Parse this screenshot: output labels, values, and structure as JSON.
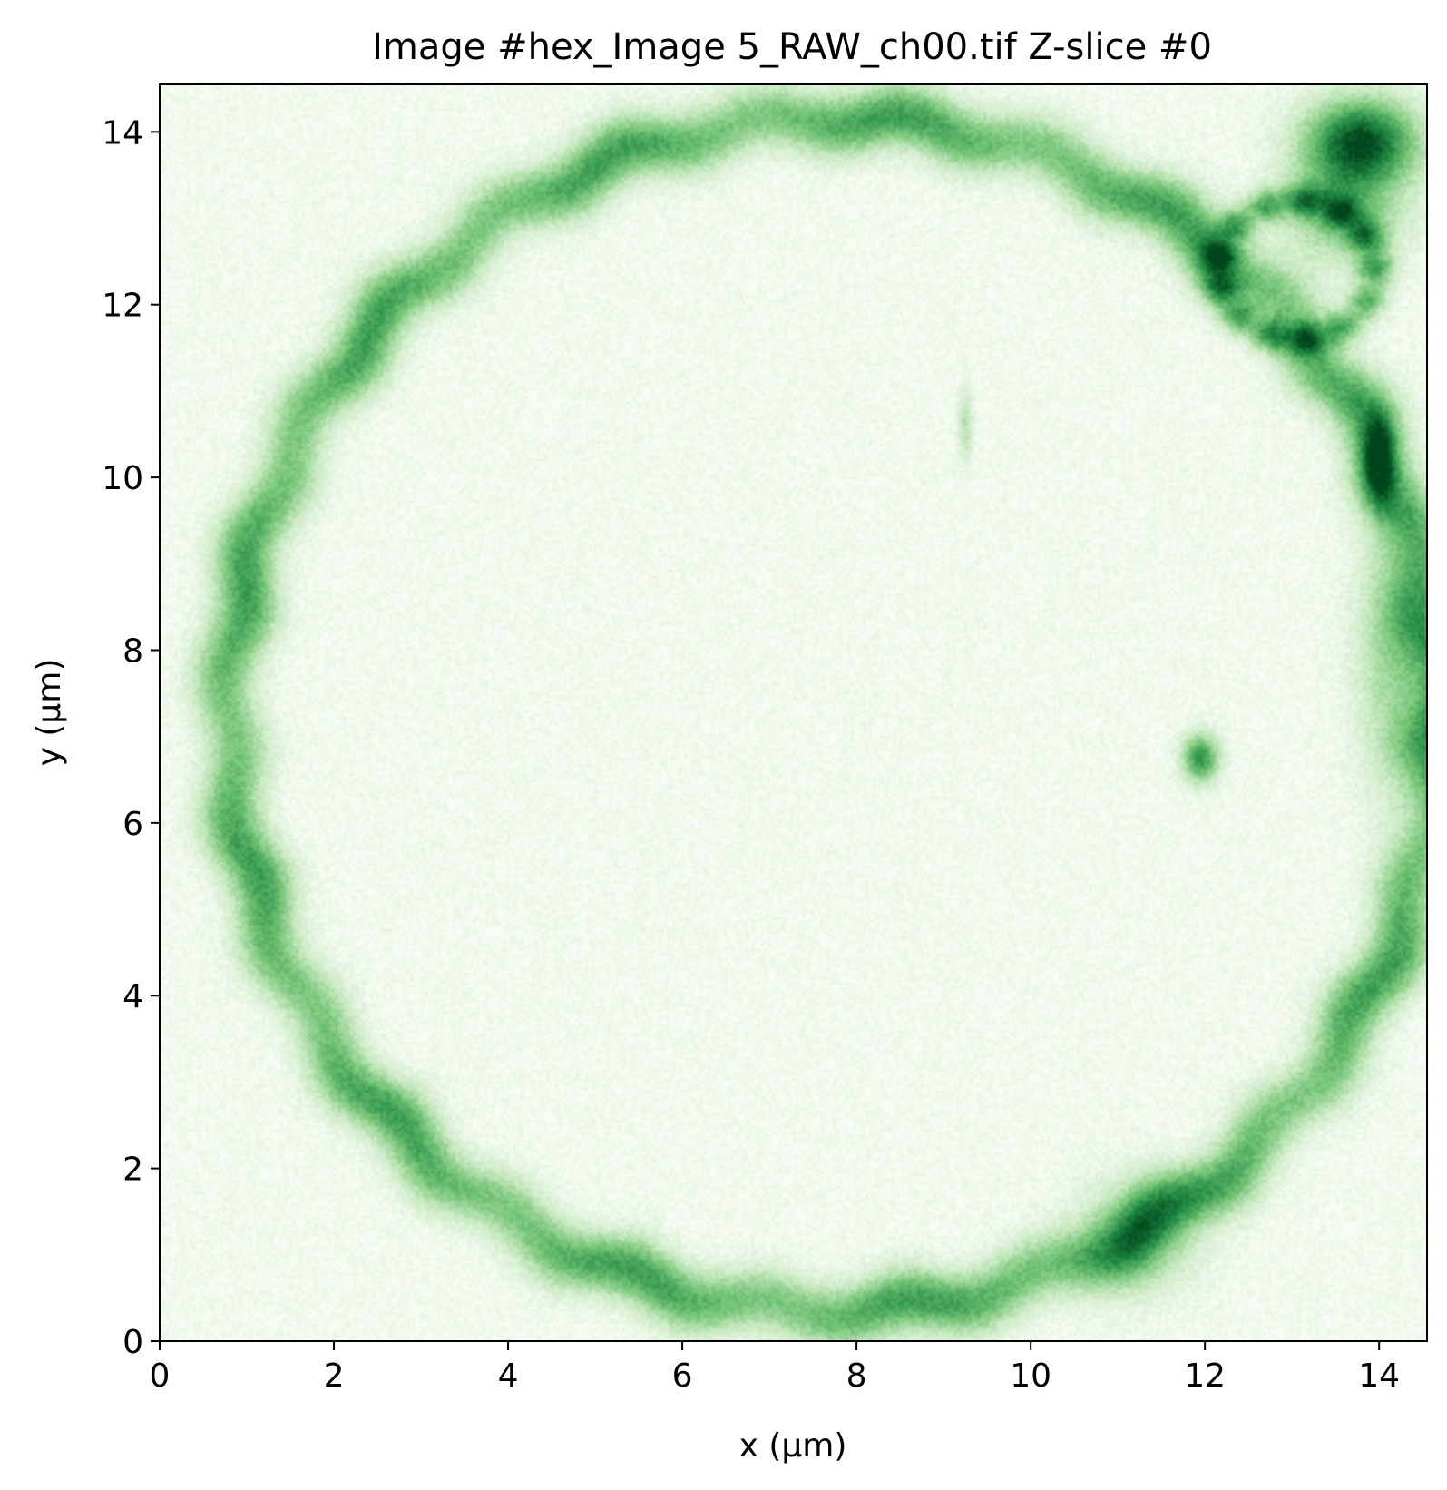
{
  "chart_data": {
    "type": "heatmap",
    "title": "Image #hex_Image 5_RAW_ch00.tif Z-slice #0",
    "xlabel": "x (μm)",
    "ylabel": "y (μm)",
    "xlim": [
      0,
      14.55
    ],
    "ylim": [
      0,
      14.55
    ],
    "x_ticks": [
      0,
      2,
      4,
      6,
      8,
      10,
      12,
      14
    ],
    "y_ticks": [
      0,
      2,
      4,
      6,
      8,
      10,
      12,
      14
    ],
    "x_tick_labels": [
      "0",
      "2",
      "4",
      "6",
      "8",
      "10",
      "12",
      "14"
    ],
    "y_tick_labels": [
      "0",
      "2",
      "4",
      "6",
      "8",
      "10",
      "12",
      "14"
    ],
    "colormap": "Greens",
    "color_low": "#f7fcf5",
    "color_high": "#00441b",
    "grid": false,
    "features": [
      {
        "kind": "ring",
        "cx": 7.75,
        "cy": 7.25,
        "rx": 6.95,
        "ry": 6.9,
        "width": 0.55,
        "intensity": 0.65
      },
      {
        "kind": "ring",
        "cx": 13.05,
        "cy": 12.4,
        "rx": 0.9,
        "ry": 0.8,
        "width": 0.3,
        "intensity": 0.55
      },
      {
        "kind": "spot",
        "x": 13.8,
        "y": 13.9,
        "sx": 0.45,
        "sy": 0.35,
        "intensity": 0.9
      },
      {
        "kind": "spot",
        "x": 13.6,
        "y": 13.1,
        "sx": 0.5,
        "sy": 0.45,
        "intensity": 0.45
      },
      {
        "kind": "spot",
        "x": 11.95,
        "y": 6.75,
        "sx": 0.15,
        "sy": 0.2,
        "intensity": 0.7
      },
      {
        "kind": "spot",
        "x": 14.0,
        "y": 10.2,
        "sx": 0.12,
        "sy": 0.35,
        "intensity": 0.6
      },
      {
        "kind": "spot",
        "x": 9.25,
        "y": 10.6,
        "sx": 0.06,
        "sy": 0.3,
        "intensity": 0.3
      },
      {
        "kind": "spot",
        "x": 11.2,
        "y": 1.2,
        "sx": 0.5,
        "sy": 0.45,
        "intensity": 0.35
      },
      {
        "kind": "spot",
        "x": 14.15,
        "y": 8.0,
        "sx": 0.3,
        "sy": 1.2,
        "intensity": 0.35
      }
    ]
  }
}
